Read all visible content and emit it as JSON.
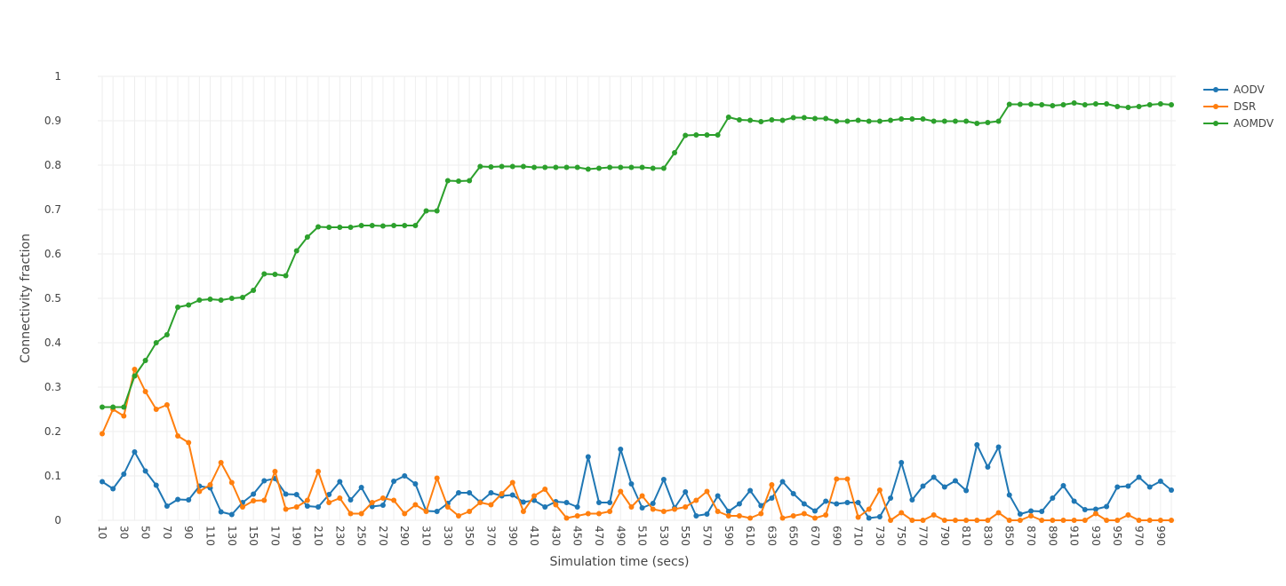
{
  "chart_data": {
    "type": "line",
    "title": "",
    "xlabel": "Simulation time (secs)",
    "ylabel": "Connectivity fraction",
    "ylim": [
      0,
      1
    ],
    "yticks": [
      0,
      0.1,
      0.2,
      0.3,
      0.4,
      0.5,
      0.6,
      0.7,
      0.8,
      0.9,
      1
    ],
    "ytick_labels": [
      "0",
      "0.1",
      "0.2",
      "0.3",
      "0.4",
      "0.5",
      "0.6",
      "0.7",
      "0.8",
      "0.9",
      "1"
    ],
    "xtick_labels": [
      "10",
      "30",
      "50",
      "70",
      "90",
      "110",
      "130",
      "150",
      "170",
      "190",
      "210",
      "230",
      "250",
      "270",
      "290",
      "310",
      "330",
      "350",
      "370",
      "390",
      "410",
      "430",
      "450",
      "470",
      "490",
      "510",
      "530",
      "550",
      "570",
      "590",
      "610",
      "630",
      "650",
      "670",
      "690",
      "710",
      "730",
      "750",
      "770",
      "790",
      "810",
      "830",
      "850",
      "870",
      "890",
      "910",
      "930",
      "950",
      "970",
      "990"
    ],
    "categories": [
      "10",
      "20",
      "30",
      "40",
      "50",
      "60",
      "70",
      "80",
      "90",
      "100",
      "110",
      "120",
      "130",
      "140",
      "150",
      "160",
      "170",
      "180",
      "190",
      "200",
      "210",
      "220",
      "230",
      "240",
      "250",
      "260",
      "270",
      "280",
      "290",
      "300",
      "310",
      "320",
      "330",
      "340",
      "350",
      "360",
      "370",
      "380",
      "390",
      "400",
      "410",
      "420",
      "430",
      "440",
      "450",
      "460",
      "470",
      "480",
      "490",
      "500",
      "510",
      "520",
      "530",
      "540",
      "550",
      "560",
      "570",
      "580",
      "590",
      "600",
      "610",
      "620",
      "630",
      "640",
      "650",
      "660",
      "670",
      "680",
      "690",
      "700",
      "710",
      "720",
      "730",
      "740",
      "750",
      "760",
      "770",
      "780",
      "790",
      "800",
      "810",
      "820",
      "830",
      "840",
      "850",
      "860",
      "870",
      "880",
      "890",
      "900",
      "910",
      "920",
      "930",
      "940",
      "950",
      "960",
      "970",
      "980",
      "990",
      "1000"
    ],
    "legend_position": "top-right",
    "grid": true,
    "series": [
      {
        "name": "AODV",
        "color": "#1f77b4",
        "values": [
          0.087,
          0.071,
          0.104,
          0.154,
          0.111,
          0.079,
          0.032,
          0.047,
          0.046,
          0.077,
          0.073,
          0.019,
          0.013,
          0.04,
          0.059,
          0.089,
          0.094,
          0.059,
          0.058,
          0.032,
          0.03,
          0.058,
          0.087,
          0.046,
          0.074,
          0.031,
          0.034,
          0.088,
          0.1,
          0.082,
          0.021,
          0.02,
          0.038,
          0.062,
          0.062,
          0.041,
          0.062,
          0.055,
          0.057,
          0.041,
          0.045,
          0.03,
          0.042,
          0.04,
          0.03,
          0.143,
          0.04,
          0.04,
          0.16,
          0.082,
          0.028,
          0.038,
          0.092,
          0.028,
          0.064,
          0.01,
          0.014,
          0.055,
          0.02,
          0.037,
          0.067,
          0.033,
          0.05,
          0.087,
          0.06,
          0.037,
          0.021,
          0.043,
          0.037,
          0.04,
          0.04,
          0.005,
          0.008,
          0.05,
          0.13,
          0.046,
          0.077,
          0.097,
          0.075,
          0.089,
          0.067,
          0.17,
          0.12,
          0.165,
          0.057,
          0.014,
          0.021,
          0.02,
          0.05,
          0.078,
          0.043,
          0.024,
          0.025,
          0.031,
          0.075,
          0.077,
          0.097,
          0.075,
          0.088,
          0.068
        ]
      },
      {
        "name": "DSR",
        "color": "#ff7f0e",
        "values": [
          0.195,
          0.25,
          0.235,
          0.34,
          0.29,
          0.25,
          0.26,
          0.19,
          0.175,
          0.065,
          0.08,
          0.13,
          0.085,
          0.03,
          0.044,
          0.045,
          0.11,
          0.025,
          0.03,
          0.045,
          0.11,
          0.04,
          0.05,
          0.015,
          0.015,
          0.04,
          0.05,
          0.045,
          0.015,
          0.035,
          0.02,
          0.095,
          0.03,
          0.01,
          0.02,
          0.04,
          0.035,
          0.06,
          0.085,
          0.02,
          0.055,
          0.07,
          0.035,
          0.005,
          0.01,
          0.015,
          0.015,
          0.02,
          0.065,
          0.03,
          0.055,
          0.025,
          0.02,
          0.025,
          0.03,
          0.045,
          0.065,
          0.02,
          0.01,
          0.01,
          0.005,
          0.015,
          0.08,
          0.005,
          0.01,
          0.015,
          0.005,
          0.012,
          0.093,
          0.093,
          0.007,
          0.025,
          0.068,
          0.0,
          0.017,
          0.0,
          0.0,
          0.012,
          0.0,
          0.0,
          0.0,
          0.0,
          0.0,
          0.017,
          0.0,
          0.0,
          0.01,
          0.0,
          0.0,
          0.0,
          0.0,
          0.0,
          0.015,
          0.0,
          0.0,
          0.012,
          0.0,
          0.0,
          0.0,
          0.0
        ]
      },
      {
        "name": "AOMDV",
        "color": "#2ca02c",
        "values": [
          0.255,
          0.255,
          0.255,
          0.325,
          0.36,
          0.4,
          0.418,
          0.48,
          0.485,
          0.496,
          0.498,
          0.496,
          0.5,
          0.502,
          0.518,
          0.555,
          0.554,
          0.551,
          0.607,
          0.638,
          0.661,
          0.66,
          0.66,
          0.66,
          0.664,
          0.664,
          0.663,
          0.664,
          0.664,
          0.664,
          0.697,
          0.697,
          0.765,
          0.764,
          0.765,
          0.797,
          0.796,
          0.797,
          0.797,
          0.797,
          0.795,
          0.795,
          0.795,
          0.795,
          0.795,
          0.791,
          0.793,
          0.795,
          0.795,
          0.795,
          0.795,
          0.793,
          0.793,
          0.828,
          0.867,
          0.868,
          0.868,
          0.868,
          0.908,
          0.902,
          0.901,
          0.898,
          0.902,
          0.901,
          0.907,
          0.907,
          0.905,
          0.905,
          0.899,
          0.899,
          0.901,
          0.899,
          0.899,
          0.901,
          0.904,
          0.904,
          0.904,
          0.899,
          0.899,
          0.899,
          0.899,
          0.894,
          0.896,
          0.899,
          0.937,
          0.937,
          0.937,
          0.936,
          0.934,
          0.936,
          0.94,
          0.936,
          0.938,
          0.938,
          0.932,
          0.93,
          0.932,
          0.936,
          0.938,
          0.936
        ]
      }
    ]
  }
}
